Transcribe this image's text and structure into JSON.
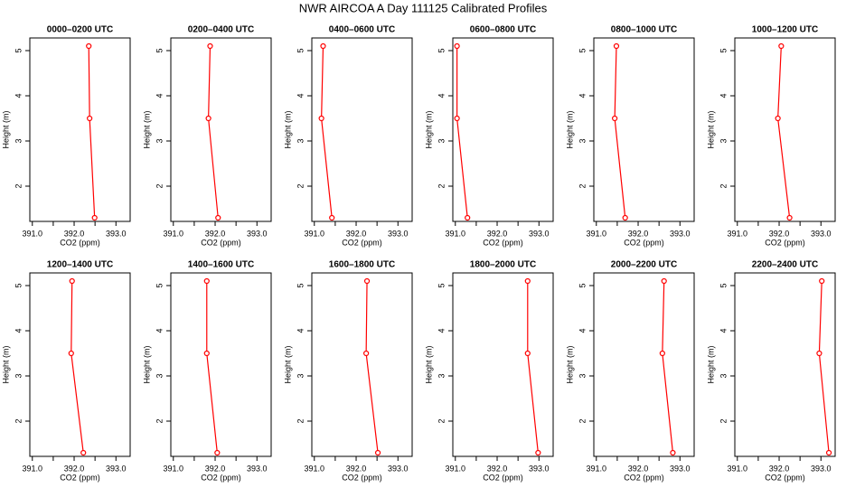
{
  "title": "NWR AIRCOA A  Day 111125  Calibrated Profiles",
  "chart_data": [
    {
      "type": "line",
      "title": "0000–0200 UTC",
      "xlabel": "CO2 (ppm)",
      "ylabel": "Height (m)",
      "color": "#ff0000",
      "x": [
        392.35,
        392.37,
        392.49
      ],
      "values": [
        5.1,
        3.5,
        1.3
      ],
      "xlim": [
        390.94,
        393.34
      ],
      "ylim": [
        1.22,
        5.28
      ],
      "xticks": [
        {
          "value": 391,
          "label": "391.0"
        },
        {
          "value": 391.5,
          "label": null
        },
        {
          "value": 392,
          "label": "392.0"
        },
        {
          "value": 392.5,
          "label": null
        },
        {
          "value": 393,
          "label": "393.0"
        }
      ],
      "yticks": [
        2,
        3,
        4,
        5
      ]
    },
    {
      "type": "line",
      "title": "0200–0400 UTC",
      "xlabel": "CO2 (ppm)",
      "ylabel": "Height (m)",
      "color": "#ff0000",
      "x": [
        391.88,
        391.84,
        392.07
      ],
      "values": [
        5.1,
        3.5,
        1.3
      ],
      "xlim": [
        390.94,
        393.34
      ],
      "ylim": [
        1.22,
        5.28
      ],
      "xticks": [
        {
          "value": 391,
          "label": "391.0"
        },
        {
          "value": 391.5,
          "label": null
        },
        {
          "value": 392,
          "label": "392.0"
        },
        {
          "value": 392.5,
          "label": null
        },
        {
          "value": 393,
          "label": "393.0"
        }
      ],
      "yticks": [
        2,
        3,
        4,
        5
      ]
    },
    {
      "type": "line",
      "title": "0400–0600 UTC",
      "xlabel": "CO2 (ppm)",
      "ylabel": "Height (m)",
      "color": "#ff0000",
      "x": [
        391.21,
        391.17,
        391.42
      ],
      "values": [
        5.1,
        3.5,
        1.3
      ],
      "xlim": [
        390.94,
        393.34
      ],
      "ylim": [
        1.22,
        5.28
      ],
      "xticks": [
        {
          "value": 391,
          "label": "391.0"
        },
        {
          "value": 391.5,
          "label": null
        },
        {
          "value": 392,
          "label": "392.0"
        },
        {
          "value": 392.5,
          "label": null
        },
        {
          "value": 393,
          "label": "393.0"
        }
      ],
      "yticks": [
        2,
        3,
        4,
        5
      ]
    },
    {
      "type": "line",
      "title": "0600–0800 UTC",
      "xlabel": "CO2 (ppm)",
      "ylabel": "Height (m)",
      "color": "#ff0000",
      "x": [
        391.04,
        391.04,
        391.29
      ],
      "values": [
        5.1,
        3.5,
        1.3
      ],
      "xlim": [
        390.94,
        393.34
      ],
      "ylim": [
        1.22,
        5.28
      ],
      "xticks": [
        {
          "value": 391,
          "label": "391.0"
        },
        {
          "value": 391.5,
          "label": null
        },
        {
          "value": 392,
          "label": "392.0"
        },
        {
          "value": 392.5,
          "label": null
        },
        {
          "value": 393,
          "label": "393.0"
        }
      ],
      "yticks": [
        2,
        3,
        4,
        5
      ]
    },
    {
      "type": "line",
      "title": "0800–1000 UTC",
      "xlabel": "CO2 (ppm)",
      "ylabel": "Height (m)",
      "color": "#ff0000",
      "x": [
        391.48,
        391.44,
        391.69
      ],
      "values": [
        5.1,
        3.5,
        1.3
      ],
      "xlim": [
        390.94,
        393.34
      ],
      "ylim": [
        1.22,
        5.28
      ],
      "xticks": [
        {
          "value": 391,
          "label": "391.0"
        },
        {
          "value": 391.5,
          "label": null
        },
        {
          "value": 392,
          "label": "392.0"
        },
        {
          "value": 392.5,
          "label": null
        },
        {
          "value": 393,
          "label": "393.0"
        }
      ],
      "yticks": [
        2,
        3,
        4,
        5
      ]
    },
    {
      "type": "line",
      "title": "1000–1200 UTC",
      "xlabel": "CO2 (ppm)",
      "ylabel": "Height (m)",
      "color": "#ff0000",
      "x": [
        392.05,
        391.97,
        392.25
      ],
      "values": [
        5.1,
        3.5,
        1.3
      ],
      "xlim": [
        390.94,
        393.34
      ],
      "ylim": [
        1.22,
        5.28
      ],
      "xticks": [
        {
          "value": 391,
          "label": "391.0"
        },
        {
          "value": 391.5,
          "label": null
        },
        {
          "value": 392,
          "label": "392.0"
        },
        {
          "value": 392.5,
          "label": null
        },
        {
          "value": 393,
          "label": "393.0"
        }
      ],
      "yticks": [
        2,
        3,
        4,
        5
      ]
    },
    {
      "type": "line",
      "title": "1200–1400 UTC",
      "xlabel": "CO2 (ppm)",
      "ylabel": "Height (m)",
      "color": "#ff0000",
      "x": [
        391.95,
        391.93,
        392.22
      ],
      "values": [
        5.1,
        3.5,
        1.3
      ],
      "xlim": [
        390.94,
        393.34
      ],
      "ylim": [
        1.22,
        5.28
      ],
      "xticks": [
        {
          "value": 391,
          "label": "391.0"
        },
        {
          "value": 391.5,
          "label": null
        },
        {
          "value": 392,
          "label": "392.0"
        },
        {
          "value": 392.5,
          "label": null
        },
        {
          "value": 393,
          "label": "393.0"
        }
      ],
      "yticks": [
        2,
        3,
        4,
        5
      ]
    },
    {
      "type": "line",
      "title": "1400–1600 UTC",
      "xlabel": "CO2 (ppm)",
      "ylabel": "Height (m)",
      "color": "#ff0000",
      "x": [
        391.8,
        391.8,
        392.05
      ],
      "values": [
        5.1,
        3.5,
        1.3
      ],
      "xlim": [
        390.94,
        393.34
      ],
      "ylim": [
        1.22,
        5.28
      ],
      "xticks": [
        {
          "value": 391,
          "label": "391.0"
        },
        {
          "value": 391.5,
          "label": null
        },
        {
          "value": 392,
          "label": "392.0"
        },
        {
          "value": 392.5,
          "label": null
        },
        {
          "value": 393,
          "label": "393.0"
        }
      ],
      "yticks": [
        2,
        3,
        4,
        5
      ]
    },
    {
      "type": "line",
      "title": "1600–1800 UTC",
      "xlabel": "CO2 (ppm)",
      "ylabel": "Height (m)",
      "color": "#ff0000",
      "x": [
        392.26,
        392.24,
        392.52
      ],
      "values": [
        5.1,
        3.5,
        1.3
      ],
      "xlim": [
        390.94,
        393.34
      ],
      "ylim": [
        1.22,
        5.28
      ],
      "xticks": [
        {
          "value": 391,
          "label": "391.0"
        },
        {
          "value": 391.5,
          "label": null
        },
        {
          "value": 392,
          "label": "392.0"
        },
        {
          "value": 392.5,
          "label": null
        },
        {
          "value": 393,
          "label": "393.0"
        }
      ],
      "yticks": [
        2,
        3,
        4,
        5
      ]
    },
    {
      "type": "line",
      "title": "1800–2000 UTC",
      "xlabel": "CO2 (ppm)",
      "ylabel": "Height (m)",
      "color": "#ff0000",
      "x": [
        392.73,
        392.73,
        392.98
      ],
      "values": [
        5.1,
        3.5,
        1.3
      ],
      "xlim": [
        390.94,
        393.34
      ],
      "ylim": [
        1.22,
        5.28
      ],
      "xticks": [
        {
          "value": 391,
          "label": "391.0"
        },
        {
          "value": 391.5,
          "label": null
        },
        {
          "value": 392,
          "label": "392.0"
        },
        {
          "value": 392.5,
          "label": null
        },
        {
          "value": 393,
          "label": "393.0"
        }
      ],
      "yticks": [
        2,
        3,
        4,
        5
      ]
    },
    {
      "type": "line",
      "title": "2000–2200 UTC",
      "xlabel": "CO2 (ppm)",
      "ylabel": "Height (m)",
      "color": "#ff0000",
      "x": [
        392.62,
        392.58,
        392.83
      ],
      "values": [
        5.1,
        3.5,
        1.3
      ],
      "xlim": [
        390.94,
        393.34
      ],
      "ylim": [
        1.22,
        5.28
      ],
      "xticks": [
        {
          "value": 391,
          "label": "391.0"
        },
        {
          "value": 391.5,
          "label": null
        },
        {
          "value": 392,
          "label": "392.0"
        },
        {
          "value": 392.5,
          "label": null
        },
        {
          "value": 393,
          "label": "393.0"
        }
      ],
      "yticks": [
        2,
        3,
        4,
        5
      ]
    },
    {
      "type": "line",
      "title": "2200–2400 UTC",
      "xlabel": "CO2 (ppm)",
      "ylabel": "Height (m)",
      "color": "#ff0000",
      "x": [
        393.02,
        392.96,
        393.19
      ],
      "values": [
        5.1,
        3.5,
        1.3
      ],
      "xlim": [
        390.94,
        393.34
      ],
      "ylim": [
        1.22,
        5.28
      ],
      "xticks": [
        {
          "value": 391,
          "label": "391.0"
        },
        {
          "value": 391.5,
          "label": null
        },
        {
          "value": 392,
          "label": "392.0"
        },
        {
          "value": 392.5,
          "label": null
        },
        {
          "value": 393,
          "label": "393.0"
        }
      ],
      "yticks": [
        2,
        3,
        4,
        5
      ]
    }
  ]
}
